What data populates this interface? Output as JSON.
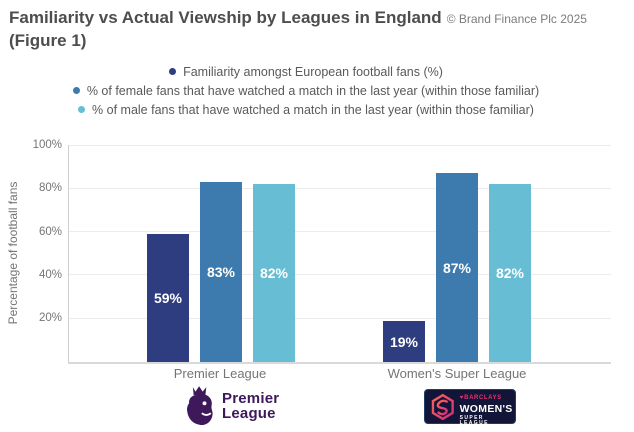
{
  "title": {
    "main": "Familiarity vs Actual Viewship by Leagues in England",
    "line2": "(Figure 1)",
    "attribution": "© Brand Finance Plc 2025"
  },
  "legend": [
    {
      "label": "Familiarity amongst European football fans (%)",
      "color": "#2e3c80"
    },
    {
      "label": "% of female fans that have watched a match in the last year (within those familiar)",
      "color": "#3d7aad"
    },
    {
      "label": "% of male fans that have watched a match in the last year (within those familiar)",
      "color": "#67bdd3"
    }
  ],
  "chart_data": {
    "type": "bar",
    "title": "Familiarity vs Actual Viewship by Leagues in England (Figure 1)",
    "categories": [
      "Premier League",
      "Women's Super League"
    ],
    "series": [
      {
        "name": "Familiarity amongst European football fans (%)",
        "values": [
          59,
          19
        ],
        "color": "#2e3c80"
      },
      {
        "name": "% of female fans that have watched a match in the last year (within those familiar)",
        "values": [
          83,
          87
        ],
        "color": "#3d7aad"
      },
      {
        "name": "% of male fans that have watched a match in the last year (within those familiar)",
        "values": [
          82,
          82
        ],
        "color": "#67bdd3"
      }
    ],
    "ylabel": "Percentage of football fans",
    "ylim": [
      0,
      100
    ],
    "yticks": [
      "20%",
      "40%",
      "60%",
      "80%",
      "100%"
    ],
    "grid": true,
    "legend_position": "top",
    "value_label_format": "percent"
  },
  "axis": {
    "y_title": "Percentage of football fans",
    "tick_labels": [
      "100%",
      "80%",
      "60%",
      "40%",
      "20%"
    ]
  },
  "logos": {
    "premier_league": {
      "line1": "Premier",
      "line2": "League",
      "color": "#3d195b"
    },
    "wsl": {
      "sponsor": "BARCLAYS",
      "line1": "WOMEN'S",
      "line2": "SUPER LEAGUE",
      "bg": "#131538",
      "accent": "#e8326f"
    }
  },
  "colors": {
    "title_text": "#4d4d4d",
    "gridline": "#ececec",
    "axis_text": "#757575"
  }
}
